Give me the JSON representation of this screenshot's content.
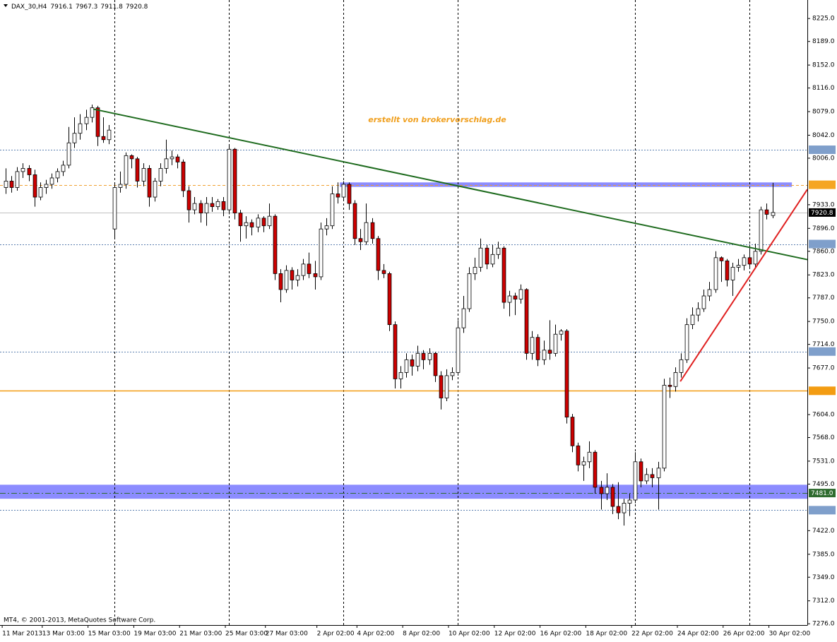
{
  "chart_data": {
    "type": "candlestick",
    "title": "DAX_30,H4",
    "watermark": "erstellt von brokervorschlag.de",
    "copyright": "MT4, © 2001-2013, MetaQuotes Software Corp.",
    "up_color": "#ffffff",
    "down_color": "#cc0000",
    "candles": [
      [
        7960,
        7990,
        7950,
        7970
      ],
      [
        7970,
        7978,
        7952,
        7960
      ],
      [
        7960,
        7992,
        7955,
        7985
      ],
      [
        7985,
        7998,
        7975,
        7990
      ],
      [
        7990,
        7995,
        7970,
        7980
      ],
      [
        7980,
        7988,
        7930,
        7945
      ],
      [
        7945,
        7968,
        7940,
        7960
      ],
      [
        7960,
        7972,
        7950,
        7965
      ],
      [
        7965,
        7982,
        7958,
        7975
      ],
      [
        7975,
        7990,
        7968,
        7985
      ],
      [
        7985,
        8002,
        7978,
        7995
      ],
      [
        7995,
        8055,
        7990,
        8030
      ],
      [
        8030,
        8070,
        8022,
        8045
      ],
      [
        8045,
        8075,
        8035,
        8060
      ],
      [
        8060,
        8082,
        8050,
        8070
      ],
      [
        8070,
        8090,
        8062,
        8085
      ],
      [
        8085,
        8088,
        8025,
        8040
      ],
      [
        8040,
        8070,
        8030,
        8035
      ],
      [
        8035,
        8058,
        8028,
        8050
      ],
      [
        7895,
        7968,
        7882,
        7960
      ],
      [
        7960,
        7985,
        7952,
        7965
      ],
      [
        7965,
        8015,
        7958,
        8010
      ],
      [
        8010,
        8012,
        7990,
        8005
      ],
      [
        8005,
        8008,
        7960,
        7970
      ],
      [
        7970,
        7998,
        7962,
        7990
      ],
      [
        7990,
        7995,
        7930,
        7945
      ],
      [
        7945,
        7975,
        7938,
        7970
      ],
      [
        7970,
        7998,
        7962,
        7990
      ],
      [
        7990,
        8035,
        7982,
        8005
      ],
      [
        8005,
        8018,
        7995,
        8008
      ],
      [
        8008,
        8012,
        7990,
        8000
      ],
      [
        8000,
        8004,
        7945,
        7955
      ],
      [
        7955,
        7962,
        7905,
        7925
      ],
      [
        7925,
        7945,
        7918,
        7935
      ],
      [
        7935,
        7940,
        7905,
        7920
      ],
      [
        7920,
        7945,
        7900,
        7935
      ],
      [
        7935,
        7945,
        7922,
        7930
      ],
      [
        7930,
        7942,
        7925,
        7938
      ],
      [
        7938,
        7945,
        7915,
        7925
      ],
      [
        7925,
        8025,
        7918,
        8020
      ],
      [
        8020,
        8022,
        7910,
        7920
      ],
      [
        7920,
        7925,
        7875,
        7900
      ],
      [
        7900,
        7915,
        7880,
        7905
      ],
      [
        7905,
        7910,
        7885,
        7898
      ],
      [
        7898,
        7918,
        7890,
        7912
      ],
      [
        7912,
        7915,
        7890,
        7900
      ],
      [
        7900,
        7935,
        7895,
        7915
      ],
      [
        7915,
        7918,
        7815,
        7825
      ],
      [
        7825,
        7832,
        7780,
        7800
      ],
      [
        7800,
        7838,
        7795,
        7830
      ],
      [
        7830,
        7835,
        7800,
        7815
      ],
      [
        7815,
        7832,
        7805,
        7822
      ],
      [
        7822,
        7848,
        7815,
        7840
      ],
      [
        7840,
        7858,
        7818,
        7825
      ],
      [
        7825,
        7845,
        7800,
        7820
      ],
      [
        7820,
        7905,
        7815,
        7895
      ],
      [
        7895,
        7912,
        7885,
        7900
      ],
      [
        7900,
        7962,
        7895,
        7950
      ],
      [
        7950,
        7968,
        7935,
        7945
      ],
      [
        7945,
        7970,
        7940,
        7965
      ],
      [
        7965,
        7968,
        7925,
        7935
      ],
      [
        7935,
        7940,
        7870,
        7880
      ],
      [
        7880,
        7895,
        7862,
        7875
      ],
      [
        7875,
        7935,
        7870,
        7905
      ],
      [
        7905,
        7912,
        7872,
        7880
      ],
      [
        7880,
        7884,
        7815,
        7830
      ],
      [
        7830,
        7840,
        7818,
        7825
      ],
      [
        7825,
        7828,
        7735,
        7745
      ],
      [
        7745,
        7750,
        7645,
        7660
      ],
      [
        7660,
        7680,
        7645,
        7670
      ],
      [
        7670,
        7700,
        7662,
        7690
      ],
      [
        7690,
        7698,
        7665,
        7680
      ],
      [
        7680,
        7712,
        7672,
        7700
      ],
      [
        7700,
        7705,
        7675,
        7690
      ],
      [
        7690,
        7708,
        7682,
        7700
      ],
      [
        7700,
        7702,
        7655,
        7665
      ],
      [
        7665,
        7672,
        7612,
        7630
      ],
      [
        7630,
        7675,
        7625,
        7665
      ],
      [
        7665,
        7678,
        7658,
        7670
      ],
      [
        7670,
        7752,
        7665,
        7740
      ],
      [
        7740,
        7790,
        7732,
        7770
      ],
      [
        7770,
        7835,
        7765,
        7825
      ],
      [
        7825,
        7850,
        7815,
        7835
      ],
      [
        7835,
        7880,
        7828,
        7865
      ],
      [
        7865,
        7870,
        7832,
        7840
      ],
      [
        7840,
        7870,
        7835,
        7855
      ],
      [
        7855,
        7875,
        7848,
        7865
      ],
      [
        7865,
        7868,
        7770,
        7780
      ],
      [
        7780,
        7798,
        7758,
        7790
      ],
      [
        7790,
        7795,
        7760,
        7785
      ],
      [
        7785,
        7808,
        7778,
        7800
      ],
      [
        7800,
        7802,
        7690,
        7700
      ],
      [
        7700,
        7735,
        7690,
        7725
      ],
      [
        7725,
        7730,
        7680,
        7690
      ],
      [
        7690,
        7720,
        7682,
        7705
      ],
      [
        7705,
        7752,
        7690,
        7700
      ],
      [
        7700,
        7745,
        7695,
        7730
      ],
      [
        7730,
        7738,
        7720,
        7735
      ],
      [
        7735,
        7738,
        7590,
        7600
      ],
      [
        7600,
        7605,
        7545,
        7555
      ],
      [
        7555,
        7560,
        7515,
        7525
      ],
      [
        7525,
        7538,
        7500,
        7530
      ],
      [
        7530,
        7562,
        7520,
        7545
      ],
      [
        7545,
        7548,
        7480,
        7490
      ],
      [
        7490,
        7500,
        7455,
        7480
      ],
      [
        7480,
        7512,
        7470,
        7490
      ],
      [
        7490,
        7495,
        7448,
        7460
      ],
      [
        7460,
        7498,
        7440,
        7450
      ],
      [
        7450,
        7472,
        7430,
        7465
      ],
      [
        7465,
        7480,
        7445,
        7470
      ],
      [
        7470,
        7545,
        7465,
        7530
      ],
      [
        7530,
        7535,
        7490,
        7500
      ],
      [
        7500,
        7520,
        7495,
        7510
      ],
      [
        7510,
        7520,
        7490,
        7505
      ],
      [
        7505,
        7530,
        7455,
        7520
      ],
      [
        7520,
        7660,
        7515,
        7650
      ],
      [
        7650,
        7662,
        7630,
        7648
      ],
      [
        7648,
        7678,
        7640,
        7670
      ],
      [
        7670,
        7700,
        7662,
        7690
      ],
      [
        7690,
        7755,
        7685,
        7745
      ],
      [
        7745,
        7772,
        7738,
        7760
      ],
      [
        7760,
        7780,
        7750,
        7770
      ],
      [
        7770,
        7800,
        7765,
        7790
      ],
      [
        7790,
        7812,
        7782,
        7800
      ],
      [
        7800,
        7860,
        7795,
        7850
      ],
      [
        7850,
        7852,
        7812,
        7845
      ],
      [
        7845,
        7848,
        7805,
        7815
      ],
      [
        7815,
        7842,
        7790,
        7835
      ],
      [
        7835,
        7848,
        7828,
        7838
      ],
      [
        7838,
        7855,
        7830,
        7850
      ],
      [
        7850,
        7870,
        7835,
        7840
      ],
      [
        7840,
        7872,
        7835,
        7860
      ],
      [
        7860,
        7930,
        7855,
        7925
      ],
      [
        7925,
        7935,
        7910,
        7918
      ],
      [
        7916.1,
        7967.3,
        7911.8,
        7920.8
      ]
    ],
    "xlim": [
      -1,
      140.1
    ],
    "ylim": [
      7274,
      8254
    ],
    "xticks": [
      {
        "value": 0,
        "label": "11 Mar 2013"
      },
      {
        "value": 7,
        "label": "13 Mar 03:00"
      },
      {
        "value": 15,
        "label": "15 Mar 03:00"
      },
      {
        "value": 23,
        "label": "19 Mar 03:00"
      },
      {
        "value": 31,
        "label": "21 Mar 03:00"
      },
      {
        "value": 39,
        "label": "25 Mar 03:00"
      },
      {
        "value": 46,
        "label": "27 Mar 03:00"
      },
      {
        "value": 55,
        "label": "2 Apr 02:00"
      },
      {
        "value": 62,
        "label": "4 Apr 02:00"
      },
      {
        "value": 70,
        "label": "8 Apr 02:00"
      },
      {
        "value": 78,
        "label": "10 Apr 02:00"
      },
      {
        "value": 86,
        "label": "12 Apr 02:00"
      },
      {
        "value": 94,
        "label": "16 Apr 02:00"
      },
      {
        "value": 102,
        "label": "18 Apr 02:00"
      },
      {
        "value": 110,
        "label": "22 Apr 02:00"
      },
      {
        "value": 118,
        "label": "24 Apr 02:00"
      },
      {
        "value": 126,
        "label": "26 Apr 02:00"
      },
      {
        "value": 134,
        "label": "30 Apr 02:00"
      }
    ],
    "yticks": [
      {
        "value": 8225,
        "label": "8225.0"
      },
      {
        "value": 8189,
        "label": "8189.0"
      },
      {
        "value": 8152,
        "label": "8152.0"
      },
      {
        "value": 8116,
        "label": "8116.0"
      },
      {
        "value": 8079,
        "label": "8079.0"
      },
      {
        "value": 8042,
        "label": "8042.0"
      },
      {
        "value": 8006,
        "label": "8006.0"
      },
      {
        "value": 7933,
        "label": "7933.0"
      },
      {
        "value": 7896,
        "label": "7896.0"
      },
      {
        "value": 7860,
        "label": "7860.0"
      },
      {
        "value": 7823,
        "label": "7823.0"
      },
      {
        "value": 7787,
        "label": "7787.0"
      },
      {
        "value": 7750,
        "label": "7750.0"
      },
      {
        "value": 7714,
        "label": "7714.0"
      },
      {
        "value": 7677,
        "label": "7677.0"
      },
      {
        "value": 7604,
        "label": "7604.0"
      },
      {
        "value": 7568,
        "label": "7568.0"
      },
      {
        "value": 7531,
        "label": "7531.0"
      },
      {
        "value": 7495,
        "label": "7495.0"
      },
      {
        "value": 7422,
        "label": "7422.0"
      },
      {
        "value": 7385,
        "label": "7385.0"
      },
      {
        "value": 7349,
        "label": "7349.0"
      },
      {
        "value": 7312,
        "label": "7312.0"
      },
      {
        "value": 7276,
        "label": "7276.0"
      }
    ],
    "separators": [
      19,
      39,
      59,
      79,
      110,
      130
    ],
    "levels": [
      {
        "value": 8019.2,
        "style": "dotted",
        "color": "#5b7fb0",
        "label_color": "#7f9fcb"
      },
      {
        "value": 7964.3,
        "style": "dashed",
        "color": "#f0a030",
        "label_color": "#f5a623"
      },
      {
        "value": 7871.4,
        "style": "dotted",
        "color": "#5b7fb0",
        "label_color": "#7f9fcb"
      },
      {
        "value": 7702.8,
        "style": "dotted",
        "color": "#5b7fb0",
        "label_color": "#7f9fcb"
      },
      {
        "value": 7641.3,
        "style": "solid",
        "color": "#f39c12",
        "label_color": "#f39c12"
      },
      {
        "value": 7481,
        "label": "7481.0",
        "style": "dashdot",
        "color": "#2e6b2e",
        "label_color": "#2e6b2e"
      },
      {
        "value": 7454.1,
        "style": "dotted",
        "color": "#5b7fb0",
        "label_color": "#7f9fcb"
      }
    ],
    "zones": [
      {
        "from": 7472,
        "to": 7494,
        "start": -1,
        "end": 140.1,
        "color": "#8c8cff"
      },
      {
        "from": 7961,
        "to": 7968,
        "start": 58.4,
        "end": 137.4,
        "color": "#8c8cff"
      }
    ],
    "trendlines": [
      {
        "start": [
          15.3,
          8083
        ],
        "end": [
          140.1,
          7847
        ],
        "color": "#1e6b1e"
      },
      {
        "start": [
          117.9,
          7656
        ],
        "end": [
          140.1,
          7957
        ],
        "color": "#e02020"
      }
    ]
  }
}
